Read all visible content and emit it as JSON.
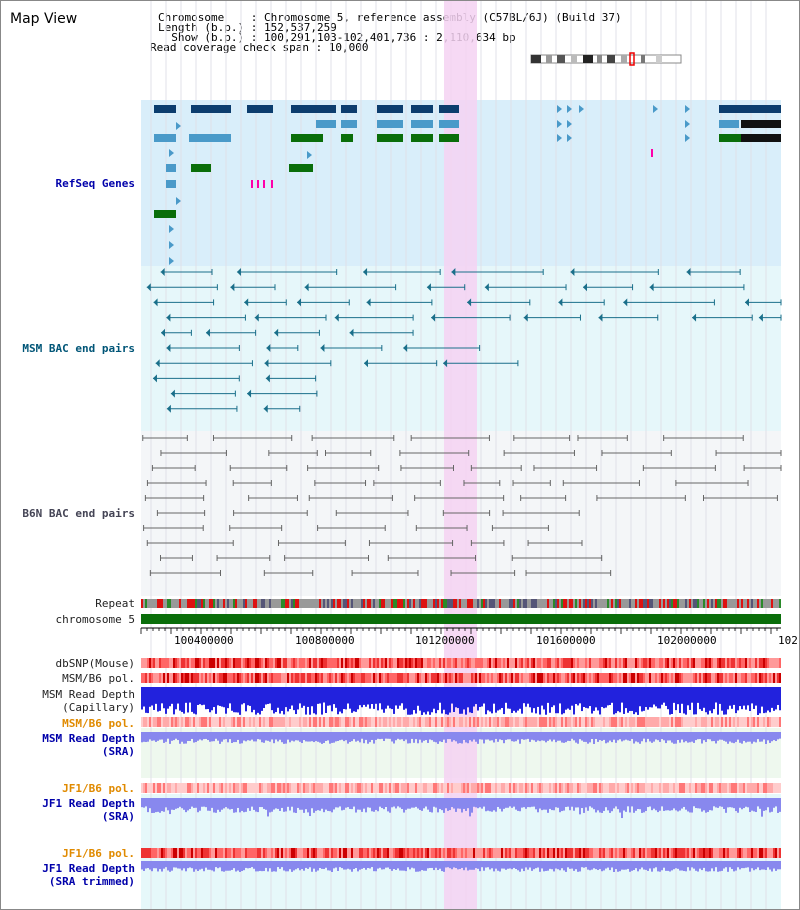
{
  "map_title": "Map View",
  "info": {
    "chromosome": "Chromosome    : Chromosome 5, reference assembly (C57BL/6J) (Build 37)",
    "length": "Length (b.p.) : 152,537,259",
    "show": "  Show (b.p.) : 100,291,103-102,401,736 : 2,110,634 bp",
    "coverage": "Read coverage check span : 10,000"
  },
  "tracks": {
    "refseq": "RefSeq Genes",
    "msm_bac": "MSM BAC end pairs",
    "b6n_bac": "B6N BAC end pairs",
    "repeat": "Repeat",
    "chromosome": "chromosome 5",
    "dbsnp": "dbSNP(Mouse)",
    "msm_b6_pol_1": "MSM/B6 pol.",
    "msm_read_depth_cap": "MSM Read Depth\n(Capillary)",
    "msm_b6_pol_2": "MSM/B6 pol.",
    "msm_read_depth_sra": "MSM Read Depth\n(SRA)",
    "jf1_b6_pol_1": "JF1/B6 pol.",
    "jf1_read_depth_sra": "JF1 Read Depth\n(SRA)",
    "jf1_b6_pol_2": "JF1/B6 pol.",
    "jf1_read_depth_trim": "JF1 Read Depth\n(SRA trimmed)"
  },
  "ruler": {
    "ticks": [
      "100400000",
      "100800000",
      "101200000",
      "101600000",
      "102000000",
      "102"
    ]
  },
  "colors": {
    "refseq_bg": "#d9eefa",
    "bac_bg": "#e6f7fa",
    "b6n_bg": "#f4f6f8",
    "highlight": "#f4d2f2",
    "gene_dark": "#0c3d6e",
    "gene_mid": "#4a9ac9",
    "gene_green": "#0a6e0a",
    "msm_line": "#1a6f8a",
    "b6n_line": "#666666",
    "chrom_bar": "#0a6e0a",
    "depth_blue": "#2222dd",
    "sra_blue": "#8888ee",
    "label_blue": "#0000aa",
    "label_orange": "#e08a00"
  }
}
